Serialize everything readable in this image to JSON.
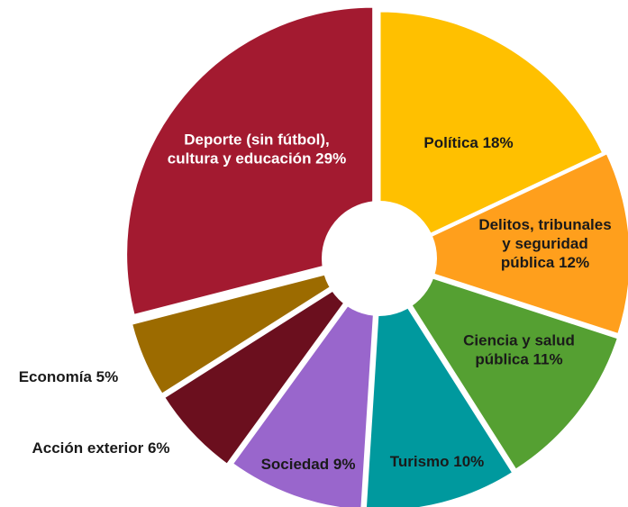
{
  "chart_data": {
    "type": "pie",
    "title": "",
    "slices": [
      {
        "label_lines": [
          "Política 18%"
        ],
        "value": 18,
        "color": "#FFC000",
        "label_color": "#1a1a1a"
      },
      {
        "label_lines": [
          "Delitos, tribunales",
          "y seguridad",
          "pública 12%"
        ],
        "value": 12,
        "color": "#FF9F1C",
        "label_color": "#1a1a1a"
      },
      {
        "label_lines": [
          "Ciencia y salud",
          "pública 11%"
        ],
        "value": 11,
        "color": "#55A032",
        "label_color": "#1a1a1a"
      },
      {
        "label_lines": [
          "Turismo 10%"
        ],
        "value": 10,
        "color": "#00999E",
        "label_color": "#1a1a1a"
      },
      {
        "label_lines": [
          "Sociedad 9%"
        ],
        "value": 9,
        "color": "#9966CC",
        "label_color": "#1a1a1a"
      },
      {
        "label_lines": [
          "Acción exterior 6%"
        ],
        "value": 6,
        "color": "#6B0F1E",
        "label_color": "#1a1a1a"
      },
      {
        "label_lines": [
          "Economía 5%"
        ],
        "value": 5,
        "color": "#9C6B00",
        "label_color": "#1a1a1a"
      },
      {
        "label_lines": [
          "Deporte (sin fútbol),",
          "cultura y educación 29%"
        ],
        "value": 29,
        "color": "#A31A30",
        "label_color": "#ffffff"
      }
    ]
  }
}
